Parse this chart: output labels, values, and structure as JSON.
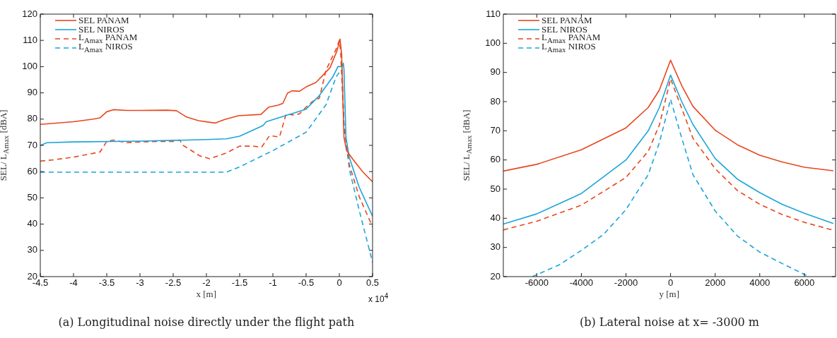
{
  "chart_data": [
    {
      "type": "line",
      "title": "(a) Longitudinal noise directly under the flight path",
      "xlabel": "x [m]",
      "ylabel": "SEL/ L$_{Amax}$ [dBA]",
      "annotations": [
        "x 10$^{4}$"
      ],
      "xlim": [
        -4.5,
        0.5
      ],
      "xticks": [
        -4.5,
        -4,
        -3.5,
        -3,
        -2.5,
        -2,
        -1.5,
        -1,
        -0.5,
        0,
        0.5
      ],
      "ylim": [
        20,
        120
      ],
      "yticks": [
        20,
        30,
        40,
        50,
        60,
        70,
        80,
        90,
        100,
        110,
        120
      ],
      "grid": false,
      "legend": "top left",
      "marker": "none",
      "series": [
        {
          "name": "SEL PANAM",
          "color": "#e8461e",
          "line_style": "solid",
          "x": [
            -4.5,
            -4.0,
            -3.7,
            -3.6,
            -3.5,
            -3.4,
            -3.2,
            -3.0,
            -2.6,
            -2.45,
            -2.3,
            -2.12,
            -1.87,
            -1.73,
            -1.52,
            -1.18,
            -1.06,
            -0.92,
            -0.85,
            -0.78,
            -0.71,
            -0.6,
            -0.49,
            -0.35,
            -0.14,
            -0.035,
            0.01,
            0.035,
            0.07,
            0.11,
            0.21,
            0.35,
            0.5
          ],
          "values": [
            78,
            79,
            80,
            80.5,
            82.8,
            83.6,
            83.3,
            83.3,
            83.4,
            83.2,
            80.8,
            79.4,
            78.5,
            79.8,
            81.3,
            81.8,
            84.6,
            85.3,
            86,
            89.9,
            90.8,
            90.6,
            92.4,
            94,
            99.6,
            106,
            110.5,
            104.8,
            73,
            68,
            64.5,
            60,
            56.1
          ]
        },
        {
          "name": "SEL NIROS",
          "color": "#1ba5d8",
          "line_style": "solid",
          "x": [
            -4.5,
            -4.4,
            -4.0,
            -3.0,
            -2.0,
            -1.7,
            -1.5,
            -1.15,
            -1.1,
            -0.5,
            -0.3,
            -0.1,
            -0.02,
            0.04,
            0.06,
            0.07,
            0.1,
            0.15,
            0.3,
            0.5
          ],
          "values": [
            70,
            71,
            71.3,
            71.6,
            72.2,
            72.5,
            73.5,
            77.5,
            79,
            83.8,
            89,
            96,
            100,
            100,
            101.3,
            99,
            73,
            65.4,
            54,
            43
          ]
        },
        {
          "name": "L$_{Amax}$ PANAM",
          "color": "#e8461e",
          "line_style": "dashed",
          "x": [
            -4.5,
            -4.3,
            -4.0,
            -3.6,
            -3.5,
            -3.4,
            -3.2,
            -3.0,
            -2.7,
            -2.5,
            -2.4,
            -2.35,
            -2.1,
            -1.95,
            -1.7,
            -1.5,
            -1.3,
            -1.17,
            -1.05,
            -0.9,
            -0.8,
            -0.7,
            -0.6,
            -0.5,
            -0.4,
            -0.3,
            -0.2,
            -0.05,
            0,
            0.02,
            0.07,
            0.15,
            0.3,
            0.5
          ],
          "values": [
            64,
            64.5,
            65.5,
            67.5,
            71.5,
            72,
            71,
            71.3,
            71.5,
            71.5,
            72,
            70,
            66,
            64.9,
            67.1,
            69.7,
            69.7,
            69.3,
            73.7,
            73.2,
            82,
            81.6,
            82,
            84.6,
            86.8,
            88,
            98.7,
            106.6,
            110,
            105.7,
            76.8,
            62.7,
            50.4,
            39
          ]
        },
        {
          "name": "L$_{Amax}$ NIROS",
          "color": "#1ba5d8",
          "line_style": "dashed",
          "x": [
            -4.5,
            -1.7,
            -1.5,
            -1.0,
            -0.5,
            -0.2,
            -0.05,
            0,
            0.04,
            0.07,
            0.15,
            0.3,
            0.5
          ],
          "values": [
            59.8,
            59.8,
            61.8,
            68,
            75,
            85.5,
            96,
            97.8,
            98.7,
            78.5,
            61,
            45.2,
            25.4
          ]
        }
      ]
    },
    {
      "type": "line",
      "title": "(b) Lateral noise at x= -3000 m",
      "xlabel": "y [m]",
      "ylabel": "SEL/ L$_{Amax}$ [dBA]",
      "xlim": [
        -7500,
        7400
      ],
      "xticks": [
        -6000,
        -4000,
        -2000,
        0,
        2000,
        4000,
        6000
      ],
      "ylim": [
        20,
        110
      ],
      "yticks": [
        20,
        30,
        40,
        50,
        60,
        70,
        80,
        90,
        100,
        110
      ],
      "grid": false,
      "legend": "top left",
      "marker": "none",
      "series": [
        {
          "name": "SEL PANAM",
          "color": "#e8461e",
          "line_style": "solid",
          "x": [
            -7500,
            -6000,
            -4000,
            -2000,
            -1000,
            -500,
            0,
            500,
            1000,
            2000,
            3000,
            4000,
            5000,
            6000,
            7300
          ],
          "values": [
            56.2,
            58.5,
            63.5,
            71,
            78,
            84,
            94.2,
            85.5,
            78.4,
            70.2,
            65.2,
            61.6,
            59.3,
            57.5,
            56.3
          ]
        },
        {
          "name": "SEL NIROS",
          "color": "#1ba5d8",
          "line_style": "solid",
          "x": [
            -7500,
            -6000,
            -4000,
            -2000,
            -1000,
            -500,
            0,
            500,
            1000,
            2000,
            3000,
            4000,
            5000,
            6000,
            7300
          ],
          "values": [
            38,
            41.5,
            48.5,
            60,
            70,
            78,
            89.1,
            80,
            72.2,
            60.5,
            53.4,
            48.8,
            44.8,
            41.7,
            38.2
          ]
        },
        {
          "name": "L$_{Amax}$ PANAM",
          "color": "#e8461e",
          "line_style": "dashed",
          "x": [
            -7500,
            -6000,
            -4000,
            -2000,
            -1000,
            -500,
            0,
            500,
            1000,
            2000,
            3000,
            4000,
            5000,
            6000,
            7300
          ],
          "values": [
            36,
            39,
            44.5,
            54,
            63,
            72,
            87.8,
            77.7,
            67.5,
            57,
            49.5,
            44.8,
            41.3,
            38.6,
            35.9
          ]
        },
        {
          "name": "L$_{Amax}$ NIROS",
          "color": "#1ba5d8",
          "line_style": "dashed",
          "x": [
            -6200,
            -5000,
            -4000,
            -3000,
            -2000,
            -1000,
            -500,
            0,
            500,
            1000,
            2000,
            3000,
            4000,
            5000,
            6200
          ],
          "values": [
            20,
            24,
            29,
            34.5,
            43,
            55,
            66,
            80.8,
            67.5,
            55,
            42.5,
            33.9,
            28.4,
            24.5,
            20
          ]
        }
      ]
    }
  ]
}
